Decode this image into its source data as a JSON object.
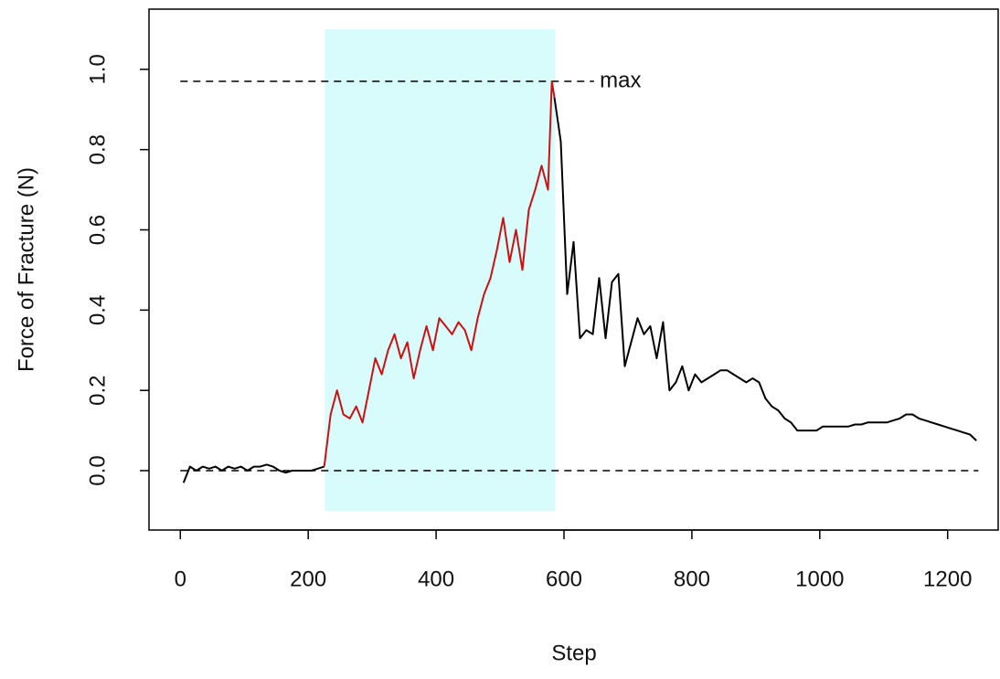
{
  "chart_data": {
    "type": "line",
    "xlabel": "Step",
    "ylabel": "Force of Fracture (N)",
    "x": [
      5,
      15,
      25,
      35,
      45,
      55,
      65,
      75,
      85,
      95,
      105,
      115,
      125,
      135,
      145,
      155,
      165,
      175,
      185,
      195,
      205,
      215,
      225,
      235,
      245,
      255,
      265,
      275,
      285,
      295,
      305,
      315,
      325,
      335,
      345,
      355,
      365,
      375,
      385,
      395,
      405,
      415,
      425,
      435,
      445,
      455,
      465,
      475,
      485,
      495,
      505,
      515,
      525,
      535,
      545,
      555,
      565,
      575,
      581,
      585,
      595,
      605,
      615,
      625,
      635,
      645,
      655,
      665,
      675,
      685,
      695,
      705,
      715,
      725,
      735,
      745,
      755,
      765,
      775,
      785,
      795,
      805,
      815,
      825,
      835,
      845,
      855,
      865,
      875,
      885,
      895,
      905,
      915,
      925,
      935,
      945,
      955,
      965,
      975,
      985,
      995,
      1005,
      1015,
      1025,
      1035,
      1045,
      1055,
      1065,
      1075,
      1085,
      1095,
      1105,
      1115,
      1125,
      1135,
      1145,
      1155,
      1165,
      1175,
      1185,
      1195,
      1205,
      1215,
      1225,
      1235,
      1245
    ],
    "series": [
      {
        "color": "#000000",
        "values": [
          -0.03,
          0.01,
          0.0,
          0.01,
          0.005,
          0.01,
          0.0,
          0.01,
          0.005,
          0.01,
          0.0,
          0.01,
          0.01,
          0.015,
          0.01,
          0.0,
          -0.005,
          0.0,
          0.0,
          0.0,
          0.0,
          0.005,
          0.01,
          null,
          null,
          null,
          null,
          null,
          null,
          null,
          null,
          null,
          null,
          null,
          null,
          null,
          null,
          null,
          null,
          null,
          null,
          null,
          null,
          null,
          null,
          null,
          null,
          null,
          null,
          null,
          null,
          null,
          null,
          null,
          null,
          null,
          null,
          null,
          null,
          0.93,
          0.82,
          0.44,
          0.57,
          0.33,
          0.35,
          0.34,
          0.48,
          0.33,
          0.47,
          0.49,
          0.26,
          0.32,
          0.38,
          0.34,
          0.36,
          0.28,
          0.37,
          0.2,
          0.22,
          0.26,
          0.2,
          0.24,
          0.22,
          0.23,
          0.24,
          0.25,
          0.25,
          0.24,
          0.23,
          0.22,
          0.23,
          0.22,
          0.18,
          0.16,
          0.15,
          0.13,
          0.12,
          0.1,
          0.1,
          0.1,
          0.1,
          0.11,
          0.11,
          0.11,
          0.11,
          0.11,
          0.115,
          0.115,
          0.12,
          0.12,
          0.12,
          0.12,
          0.125,
          0.13,
          0.14,
          0.14,
          0.13,
          0.125,
          0.12,
          0.115,
          0.11,
          0.105,
          0.1,
          0.095,
          0.09,
          0.075
        ]
      },
      {
        "color": "#d01010",
        "values": [
          null,
          null,
          null,
          null,
          null,
          null,
          null,
          null,
          null,
          null,
          null,
          null,
          null,
          null,
          null,
          null,
          null,
          null,
          null,
          null,
          null,
          null,
          0.01,
          0.14,
          0.2,
          0.14,
          0.13,
          0.16,
          0.12,
          0.2,
          0.28,
          0.24,
          0.3,
          0.34,
          0.28,
          0.32,
          0.23,
          0.3,
          0.36,
          0.3,
          0.38,
          0.36,
          0.34,
          0.37,
          0.35,
          0.3,
          0.38,
          0.44,
          0.48,
          0.55,
          0.63,
          0.52,
          0.6,
          0.5,
          0.65,
          0.7,
          0.76,
          0.7,
          0.97,
          0.93,
          null,
          null,
          null,
          null,
          null,
          null,
          null,
          null,
          null,
          null,
          null,
          null,
          null,
          null,
          null,
          null,
          null,
          null,
          null,
          null,
          null,
          null,
          null,
          null,
          null,
          null,
          null,
          null,
          null,
          null,
          null,
          null,
          null,
          null,
          null,
          null,
          null,
          null,
          null,
          null,
          null,
          null,
          null,
          null,
          null,
          null,
          null,
          null,
          null,
          null,
          null,
          null,
          null,
          null,
          null,
          null,
          null,
          null,
          null,
          null,
          null,
          null,
          null,
          null,
          null,
          null
        ]
      }
    ],
    "shaded_region": {
      "x": [
        226,
        586
      ],
      "y": [
        -0.1,
        1.1
      ],
      "color": "#d8fbfc"
    },
    "reference_lines": [
      {
        "y": 0,
        "x": [
          0,
          1248
        ]
      },
      {
        "y": 0.97,
        "x": [
          0,
          647
        ]
      }
    ],
    "annotation": {
      "text": "max",
      "x": 656,
      "y": 0.97
    },
    "xlim": [
      -49,
      1279
    ],
    "ylim": [
      -0.148,
      1.15
    ],
    "xticks": [
      0,
      200,
      400,
      600,
      800,
      1000,
      1200
    ],
    "yticks": [
      {
        "value": 0,
        "label": "0.0"
      },
      {
        "value": 0.2,
        "label": "0.2"
      },
      {
        "value": 0.4,
        "label": "0.4"
      },
      {
        "value": 0.6,
        "label": "0.6"
      },
      {
        "value": 0.8,
        "label": "0.8"
      },
      {
        "value": 1,
        "label": "1.0"
      }
    ]
  }
}
